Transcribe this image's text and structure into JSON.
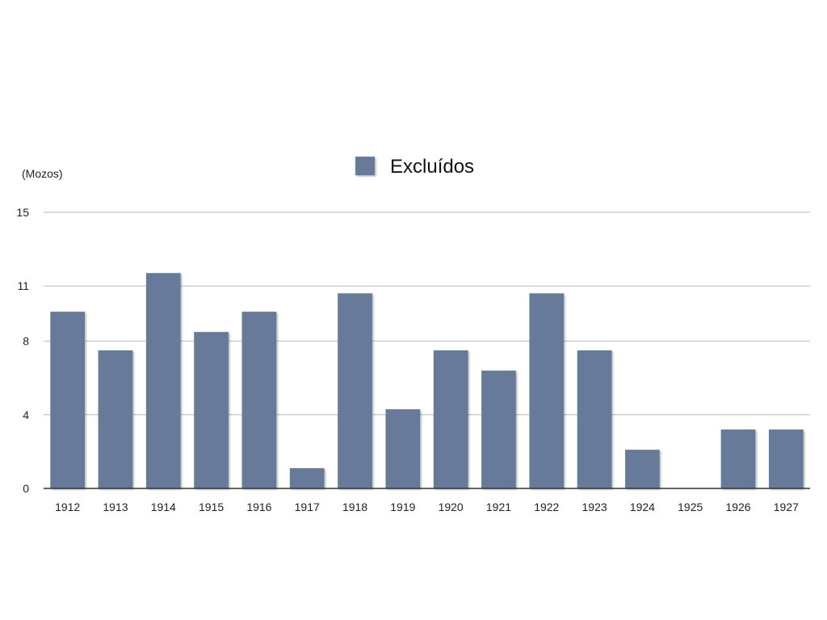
{
  "chart_data": {
    "type": "bar",
    "title": "",
    "xlabel": "",
    "ylabel": "(Mozos)",
    "ylim": [
      0,
      15
    ],
    "yticks": [
      0,
      4,
      8,
      11,
      15
    ],
    "grid": true,
    "legend_position": "top-center",
    "categories": [
      "1912",
      "1913",
      "1914",
      "1915",
      "1916",
      "1917",
      "1918",
      "1919",
      "1920",
      "1921",
      "1922",
      "1923",
      "1924",
      "1925",
      "1926",
      "1927"
    ],
    "series": [
      {
        "name": "Excluídos",
        "color": "#687a99",
        "values": [
          9.6,
          7.5,
          11.7,
          8.5,
          9.6,
          1.1,
          10.6,
          4.3,
          7.5,
          6.4,
          10.6,
          7.5,
          2.1,
          0,
          3.2,
          3.2
        ]
      }
    ]
  }
}
